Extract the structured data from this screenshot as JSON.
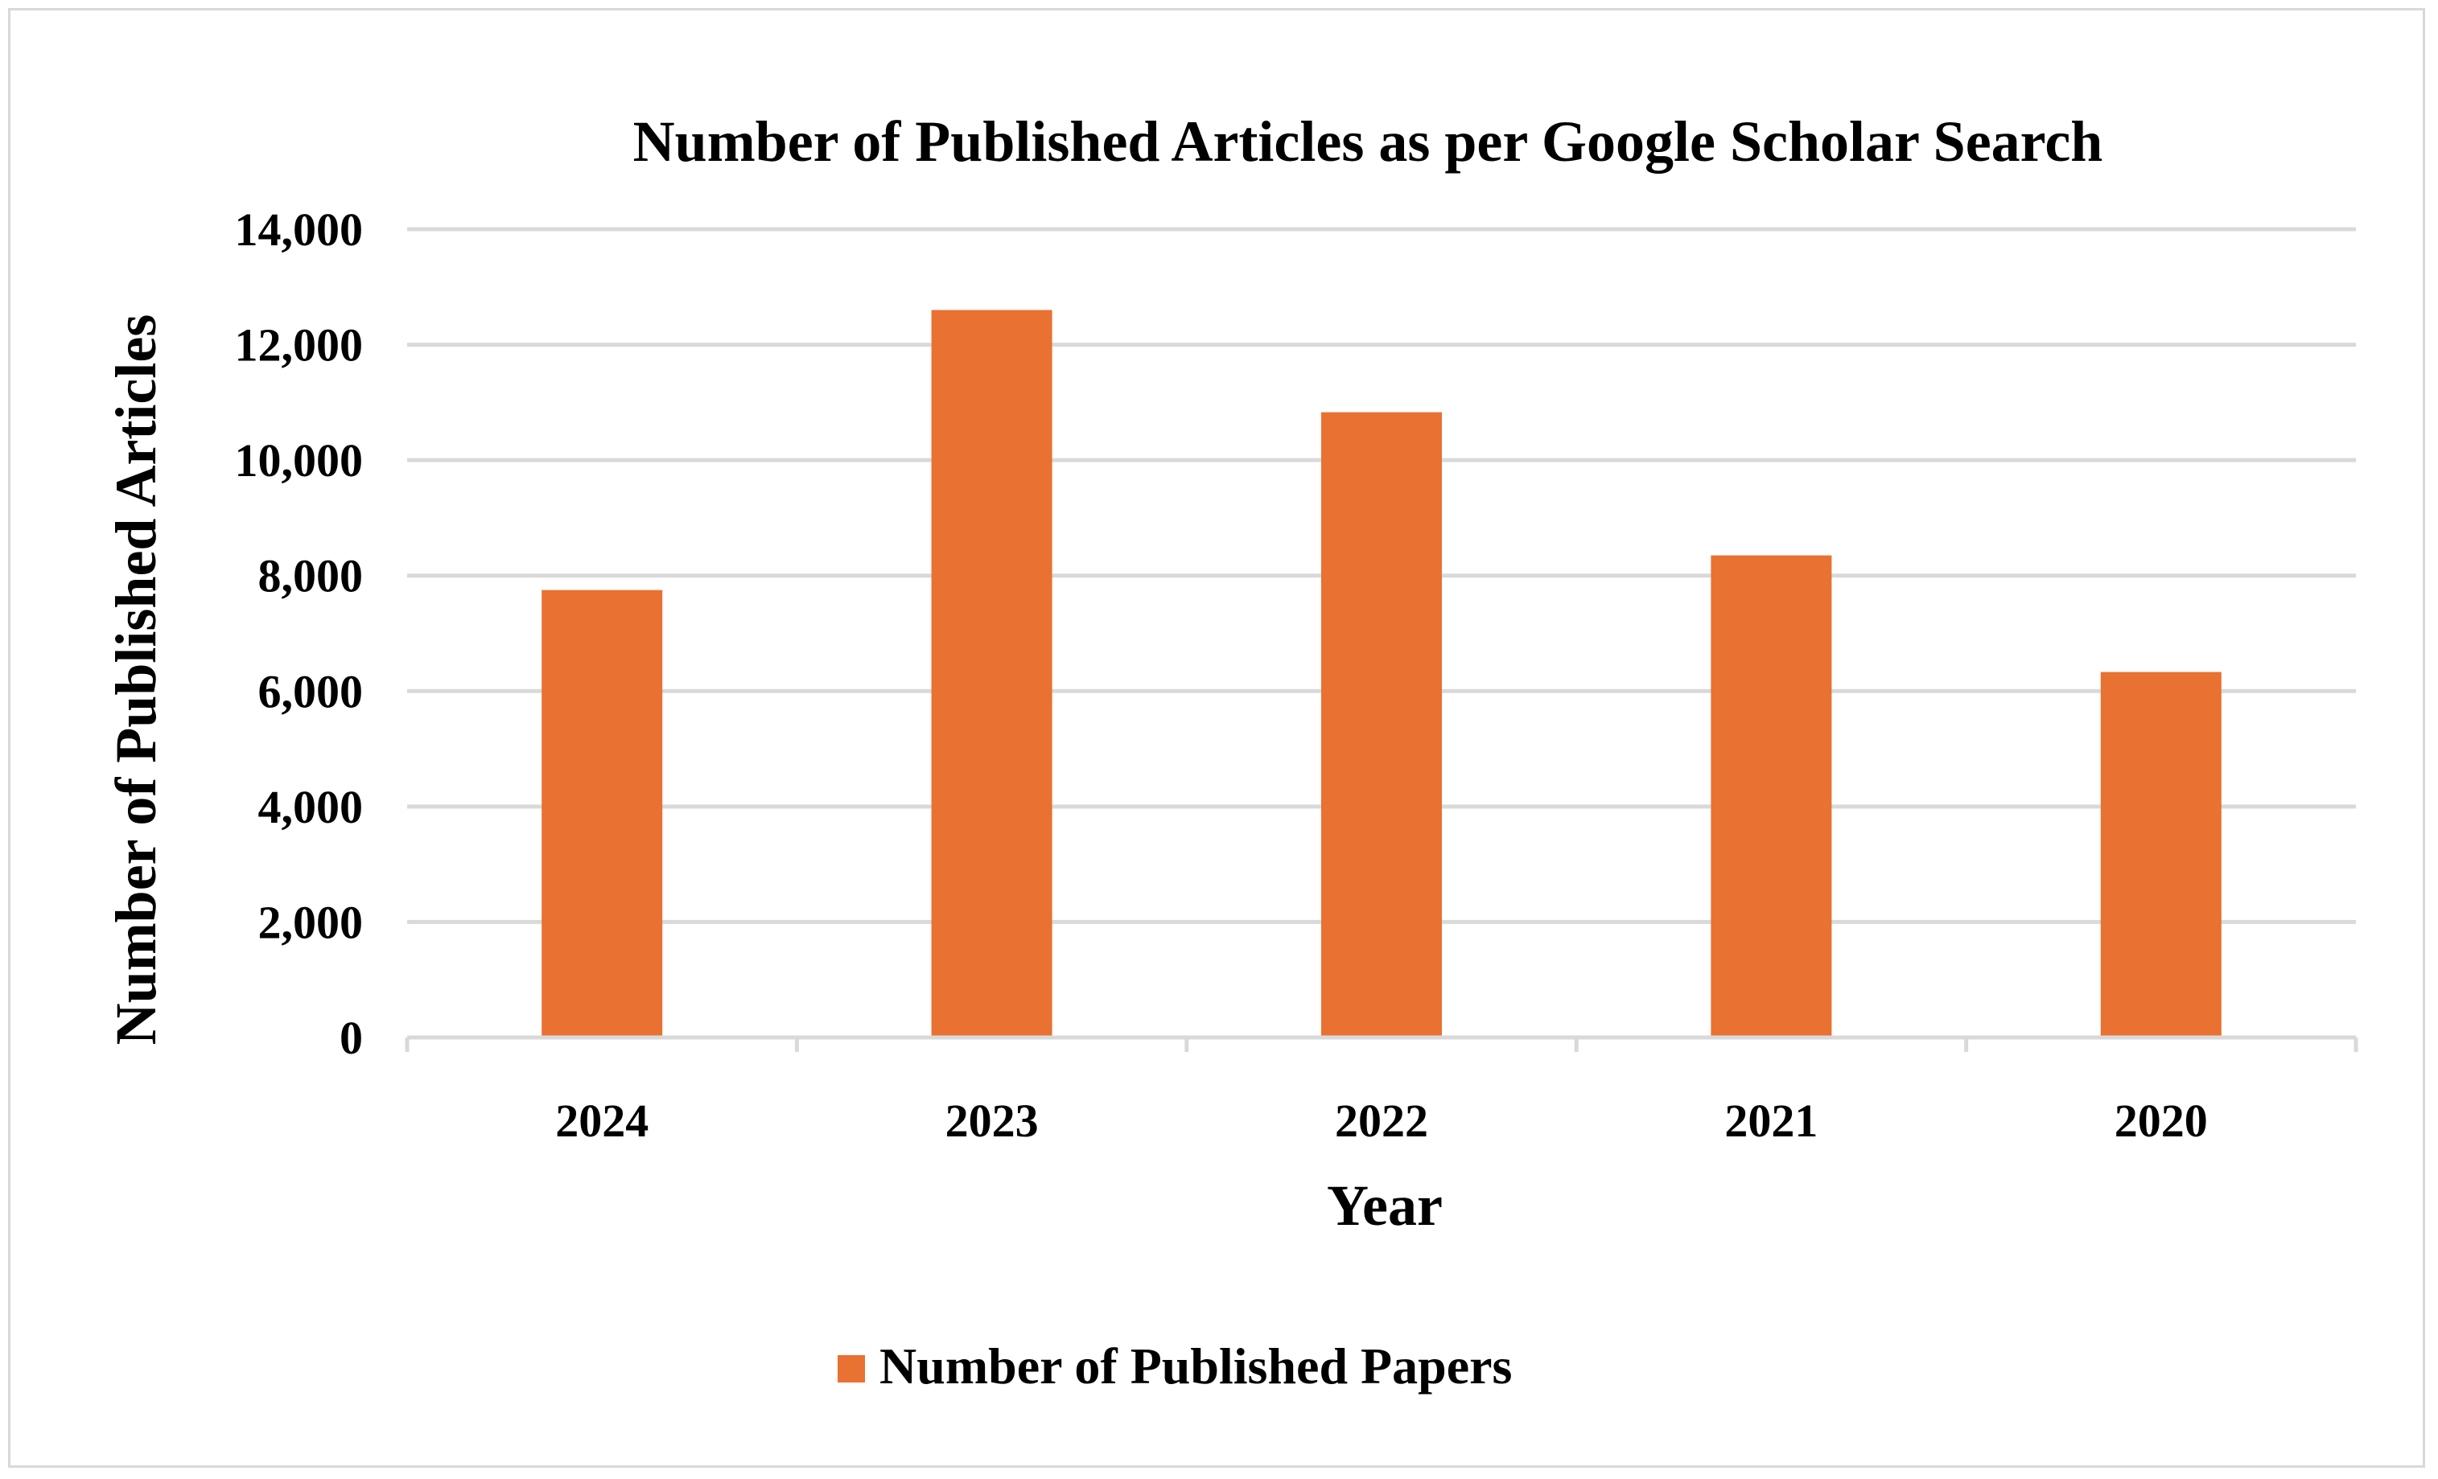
{
  "chart_data": {
    "type": "bar",
    "title": "Number of Published Articles as per Google Scholar Search",
    "xlabel": "Year",
    "ylabel": "Number of Published Articles",
    "categories": [
      "2024",
      "2023",
      "2022",
      "2021",
      "2020"
    ],
    "series": [
      {
        "name": "Number of Published Papers",
        "values": [
          7750,
          12600,
          10830,
          8350,
          6330
        ],
        "color": "#E97132"
      }
    ],
    "ylim": [
      0,
      14000
    ],
    "yticks": [
      0,
      2000,
      4000,
      6000,
      8000,
      10000,
      12000,
      14000
    ],
    "ytick_labels": [
      "0",
      "2,000",
      "4,000",
      "6,000",
      "8,000",
      "10,000",
      "12,000",
      "14,000"
    ],
    "grid": true,
    "legend_position": "bottom",
    "gridline_color": "#d9d9d9"
  }
}
